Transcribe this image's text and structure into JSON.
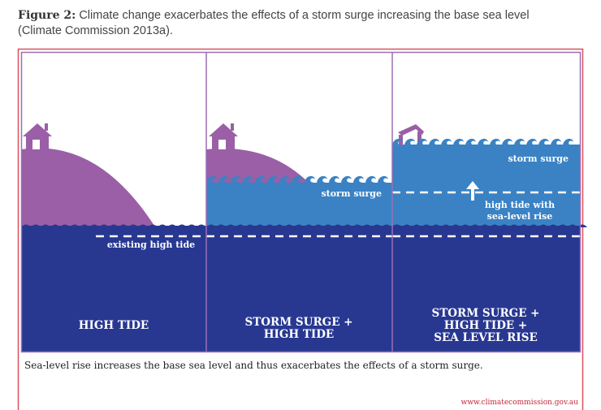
{
  "figure": {
    "label": "Figure 2:",
    "title": "Climate change exacerbates the effects of a storm surge increasing the base sea level (Climate Commission 2013a).",
    "caption": "Sea-level rise increases the base sea level and thus exacerbates the effects of a storm surge.",
    "source_url": "www.climatecommission.gov.au"
  },
  "panels": [
    {
      "heading_lines": [
        "HIGH TIDE"
      ],
      "annotations": [
        "existing high tide"
      ]
    },
    {
      "heading_lines": [
        "STORM SURGE +",
        "HIGH TIDE"
      ],
      "annotations": [
        "storm surge"
      ]
    },
    {
      "heading_lines": [
        "STORM SURGE +",
        "HIGH TIDE +",
        "SEA LEVEL RISE"
      ],
      "annotations": [
        "storm surge",
        "high tide with",
        "sea-level rise"
      ]
    }
  ],
  "colors": {
    "deep_sea": "#283891",
    "surge": "#3a82c4",
    "land": "#9a5fa6",
    "frame": "#9a6fb5",
    "border": "#d9505f",
    "url": "#c0283a"
  },
  "icons": [
    "house-icon",
    "damaged-house-icon",
    "up-arrow-icon",
    "wave-icon"
  ]
}
